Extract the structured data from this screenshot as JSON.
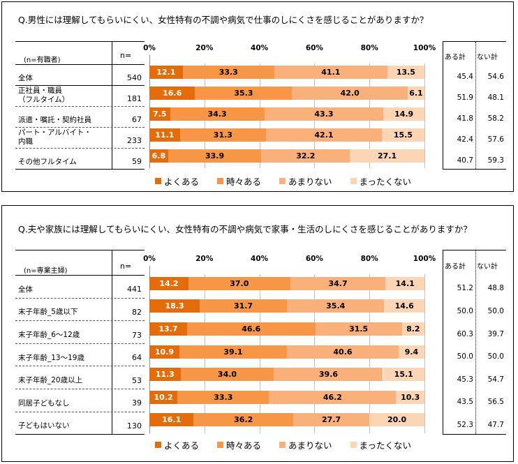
{
  "series_names": [
    "よくある",
    "時々ある",
    "あまりない",
    "まったくない"
  ],
  "colors": [
    "#E46C0A",
    "#F79646",
    "#FAB07A",
    "#FCD5B5"
  ],
  "chart_data": [
    {
      "type": "bar",
      "question": "Q.男性には理解してもらいにくい、女性特有の不調や病気で仕事のしにくさを感じることがありますか？",
      "group_label": "(n=有職者)",
      "n_header": "n=",
      "xticks": [
        "0%",
        "20%",
        "40%",
        "60%",
        "80%",
        "100%"
      ],
      "xlim": [
        0,
        100
      ],
      "right_headers": [
        "ある計",
        "ない計"
      ],
      "categories": [
        "全体",
        "正社員・職員（フルタイム）",
        "派遣・嘱託・契約社員",
        "パート・アルバイト・内職",
        "その他フルタイム"
      ],
      "category_lines": [
        [
          "全体"
        ],
        [
          "正社員・職員",
          "（フルタイム）"
        ],
        [
          "派遣・嘱託・契約社員"
        ],
        [
          "パート・アルバイト・",
          "内職"
        ],
        [
          "その他フルタイム"
        ]
      ],
      "n": [
        "540",
        "181",
        "67",
        "233",
        "59"
      ],
      "series": [
        {
          "name": "よくある",
          "values": [
            12.1,
            16.6,
            7.5,
            11.1,
            6.8
          ]
        },
        {
          "name": "時々ある",
          "values": [
            33.3,
            35.3,
            34.3,
            31.3,
            33.9
          ]
        },
        {
          "name": "あまりない",
          "values": [
            41.1,
            42.0,
            43.3,
            42.1,
            32.2
          ]
        },
        {
          "name": "まったくない",
          "values": [
            13.5,
            6.1,
            14.9,
            15.5,
            27.1
          ]
        }
      ],
      "aru_kei": [
        "45.4",
        "51.9",
        "41.8",
        "42.4",
        "40.7"
      ],
      "nai_kei": [
        "54.6",
        "48.1",
        "58.2",
        "57.6",
        "59.3"
      ]
    },
    {
      "type": "bar",
      "question": "Q.夫や家族には理解してもらいにくい、女性特有の不調や病気で家事・生活のしにくさを感じることがありますか？",
      "group_label": "(n=専業主婦)",
      "n_header": "n=",
      "xticks": [
        "0%",
        "20%",
        "40%",
        "60%",
        "80%",
        "100%"
      ],
      "xlim": [
        0,
        100
      ],
      "right_headers": [
        "ある計",
        "ない計"
      ],
      "categories": [
        "全体",
        "末子年齢_5歳以下",
        "末子年齢_6～12歳",
        "末子年齢_13～19歳",
        "末子年齢_20歳以上",
        "同居子どもなし",
        "子どもはいない"
      ],
      "category_lines": [
        [
          "全体"
        ],
        [
          "末子年齢_5歳以下"
        ],
        [
          "末子年齢_6～12歳"
        ],
        [
          "末子年齢_13～19歳"
        ],
        [
          "末子年齢_20歳以上"
        ],
        [
          "同居子どもなし"
        ],
        [
          "子どもはいない"
        ]
      ],
      "n": [
        "441",
        "82",
        "73",
        "64",
        "53",
        "39",
        "130"
      ],
      "series": [
        {
          "name": "よくある",
          "values": [
            14.2,
            18.3,
            13.7,
            10.9,
            11.3,
            10.2,
            16.1
          ]
        },
        {
          "name": "時々ある",
          "values": [
            37.0,
            31.7,
            46.6,
            39.1,
            34.0,
            33.3,
            36.2
          ]
        },
        {
          "name": "あまりない",
          "values": [
            34.7,
            35.4,
            31.5,
            40.6,
            39.6,
            46.2,
            27.7
          ]
        },
        {
          "name": "まったくない",
          "values": [
            14.1,
            14.6,
            8.2,
            9.4,
            15.1,
            10.3,
            20.0
          ]
        }
      ],
      "aru_kei": [
        "51.2",
        "50.0",
        "60.3",
        "50.0",
        "45.3",
        "43.5",
        "52.3"
      ],
      "nai_kei": [
        "48.8",
        "50.0",
        "39.7",
        "50.0",
        "54.7",
        "56.5",
        "47.7"
      ]
    }
  ]
}
